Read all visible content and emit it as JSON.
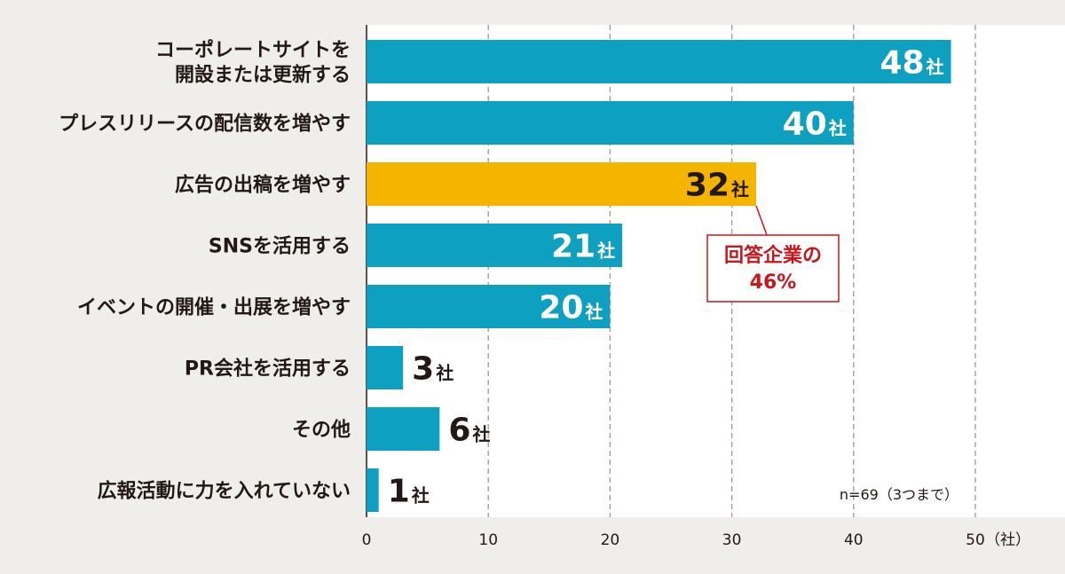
{
  "chart_data": {
    "type": "bar",
    "orientation": "horizontal",
    "categories": [
      [
        "コーポレートサイトを",
        "開設または更新する"
      ],
      [
        "プレスリリースの配信数を増やす"
      ],
      [
        "広告の出稿を増やす"
      ],
      [
        "SNSを活用する"
      ],
      [
        "イベントの開催・出展を増やす"
      ],
      [
        "PR会社を活用する"
      ],
      [
        "その他"
      ],
      [
        "広報活動に力を入れていない"
      ]
    ],
    "values": [
      48,
      40,
      32,
      21,
      20,
      3,
      6,
      1
    ],
    "value_unit": "社",
    "highlight_index": 2,
    "colors": {
      "bar": "#0ea0c0",
      "highlight": "#f5b400",
      "callout": "#c8161d",
      "text": "#231815",
      "background": "#efeeea",
      "plot": "#ffffff",
      "grid": "#9a9a9a"
    },
    "xlim": [
      0,
      50
    ],
    "xticks": [
      0,
      10,
      20,
      30,
      40,
      50
    ],
    "x_unit_label": "（社）",
    "grid": "vertical-dashed",
    "sample_note": "n=69（3つまで）",
    "callout": {
      "lines": [
        "回答企業の",
        "46%"
      ],
      "target_index": 2
    }
  }
}
